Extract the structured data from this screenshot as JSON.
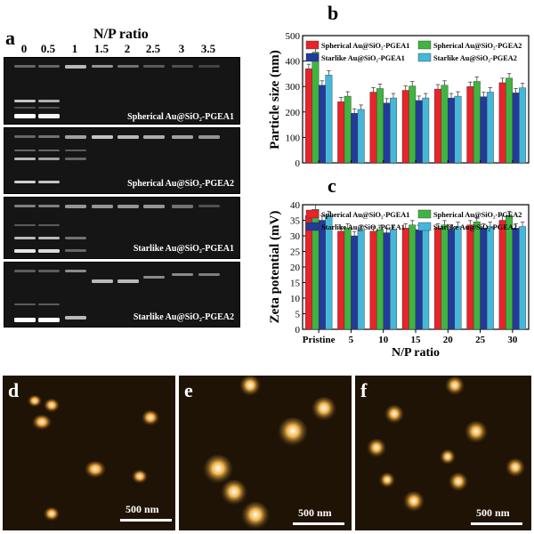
{
  "panel_a": {
    "letter": "a",
    "title": "N/P ratio",
    "lanes": [
      "0",
      "0.5",
      "1",
      "1.5",
      "2",
      "2.5",
      "3",
      "3.5"
    ],
    "gels": [
      {
        "label": "Spherical Au@SiO₂-PGEA1"
      },
      {
        "label": "Spherical Au@SiO₂-PGEA2"
      },
      {
        "label": "Starlike Au@SiO₂-PGEA1"
      },
      {
        "label": "Starlike Au@SiO₂-PGEA2"
      }
    ]
  },
  "panel_b": {
    "letter": "b"
  },
  "panel_c": {
    "letter": "c"
  },
  "panel_d": {
    "letter": "d",
    "scale": "500 nm"
  },
  "panel_e": {
    "letter": "e",
    "scale": "500 nm"
  },
  "panel_f": {
    "letter": "f",
    "scale": "500 nm"
  },
  "chart_data": [
    {
      "type": "bar",
      "ylabel": "Particle size (nm)",
      "xlabel": "",
      "categories": [
        "Pristine",
        "5",
        "10",
        "15",
        "20",
        "25",
        "30"
      ],
      "ylim": [
        0,
        500
      ],
      "yticks": [
        0,
        100,
        200,
        300,
        400,
        500
      ],
      "legend": "top",
      "series": [
        {
          "name": "Spherical Au@SiO₂-PGEA1",
          "color": "#e8232a",
          "values": [
            370,
            240,
            278,
            285,
            290,
            300,
            315
          ]
        },
        {
          "name": "Spherical Au@SiO₂-PGEA2",
          "color": "#3fb540",
          "values": [
            435,
            262,
            292,
            302,
            305,
            320,
            333
          ]
        },
        {
          "name": "Starlike Au@SiO₂-PGEA1",
          "color": "#243a9a",
          "values": [
            305,
            195,
            235,
            245,
            255,
            260,
            275
          ]
        },
        {
          "name": "Starlike Au@SiO₂-PGEA2",
          "color": "#45b7d9",
          "values": [
            345,
            210,
            255,
            255,
            262,
            278,
            295
          ]
        }
      ]
    },
    {
      "type": "bar",
      "ylabel": "Zeta potential (mV)",
      "xlabel": "N/P ratio",
      "categories": [
        "Pristine",
        "5",
        "10",
        "15",
        "20",
        "25",
        "30"
      ],
      "ylim": [
        0,
        40
      ],
      "yticks": [
        0,
        5,
        10,
        15,
        20,
        25,
        30,
        35,
        40
      ],
      "legend": "top",
      "series": [
        {
          "name": "Spherical Au@SiO₂-PGEA1",
          "color": "#e8232a",
          "values": [
            36.5,
            31.5,
            31.5,
            32.5,
            32.5,
            33.5,
            35
          ]
        },
        {
          "name": "Spherical Au@SiO₂-PGEA2",
          "color": "#3fb540",
          "values": [
            38.5,
            32.5,
            32,
            33.5,
            33.5,
            34.5,
            36.5
          ]
        },
        {
          "name": "Starlike Au@SiO₂-PGEA1",
          "color": "#243a9a",
          "values": [
            35,
            30,
            31,
            32,
            32,
            32.5,
            32.5
          ]
        },
        {
          "name": "Starlike Au@SiO₂-PGEA2",
          "color": "#45b7d9",
          "values": [
            36.5,
            32,
            32,
            32.5,
            33,
            33,
            33
          ]
        }
      ]
    }
  ]
}
